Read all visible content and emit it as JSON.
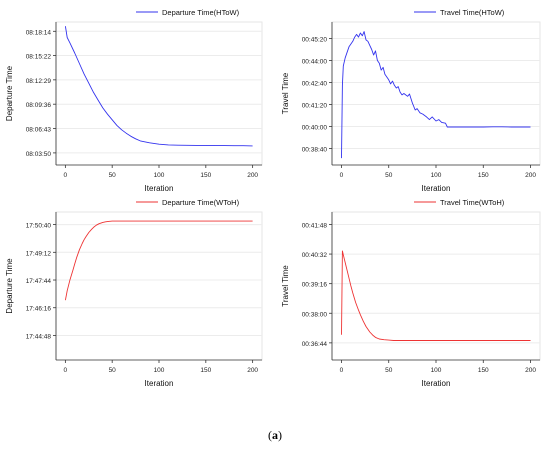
{
  "caption": {
    "open": "(",
    "letter": "a",
    "close": ")"
  },
  "chart_data": [
    {
      "type": "line",
      "legend": "Departure Time(HToW)",
      "legend_position": "top-right",
      "color": "#3333ee",
      "xlabel": "Iteration",
      "ylabel": "Departure Time",
      "xlim": [
        -10,
        210
      ],
      "xticks": [
        0,
        50,
        100,
        150,
        200
      ],
      "ylim": [
        "08:02:24",
        "08:19:20"
      ],
      "yticks": [
        "08:03:50",
        "08:06:43",
        "08:09:36",
        "08:12:29",
        "08:15:22",
        "08:18:14"
      ],
      "grid": "horizontal",
      "series": [
        {
          "x": [
            0,
            2,
            5,
            10,
            15,
            20,
            25,
            30,
            35,
            40,
            45,
            50,
            55,
            60,
            65,
            70,
            75,
            80,
            90,
            100,
            110,
            120,
            130,
            140,
            150,
            160,
            170,
            180,
            190,
            200
          ],
          "y": [
            "08:18:50",
            "08:17:30",
            "08:16:50",
            "08:15:40",
            "08:14:25",
            "08:13:10",
            "08:12:05",
            "08:11:00",
            "08:10:05",
            "08:09:10",
            "08:08:25",
            "08:07:45",
            "08:07:05",
            "08:06:35",
            "08:06:10",
            "08:05:48",
            "08:05:30",
            "08:05:15",
            "08:05:02",
            "08:04:52",
            "08:04:47",
            "08:04:45",
            "08:04:44",
            "08:04:43",
            "08:04:43",
            "08:04:42",
            "08:04:42",
            "08:04:41",
            "08:04:41",
            "08:04:40"
          ]
        }
      ]
    },
    {
      "type": "line",
      "legend": "Travel Time(HToW)",
      "legend_position": "top-right",
      "color": "#3333ee",
      "xlabel": "Iteration",
      "ylabel": "Travel Time",
      "xlim": [
        -10,
        210
      ],
      "xticks": [
        0,
        50,
        100,
        150,
        200
      ],
      "ylim": [
        "00:37:40",
        "00:46:20"
      ],
      "yticks": [
        "00:38:40",
        "00:40:00",
        "00:41:20",
        "00:42:40",
        "00:44:00",
        "00:45:20"
      ],
      "grid": "horizontal",
      "series": [
        {
          "x": [
            0,
            1,
            2,
            4,
            6,
            8,
            10,
            12,
            14,
            16,
            18,
            20,
            22,
            24,
            26,
            28,
            30,
            32,
            34,
            36,
            38,
            40,
            42,
            44,
            46,
            48,
            50,
            52,
            54,
            56,
            58,
            60,
            62,
            64,
            66,
            68,
            70,
            72,
            75,
            78,
            80,
            83,
            86,
            90,
            93,
            96,
            100,
            103,
            106,
            110,
            112,
            120,
            130,
            140,
            150,
            160,
            170,
            180,
            190,
            200
          ],
          "y": [
            "00:38:05",
            "00:42:30",
            "00:43:40",
            "00:44:10",
            "00:44:30",
            "00:44:50",
            "00:45:00",
            "00:45:10",
            "00:45:25",
            "00:45:35",
            "00:45:25",
            "00:45:40",
            "00:45:30",
            "00:45:45",
            "00:45:15",
            "00:45:10",
            "00:44:55",
            "00:44:40",
            "00:44:20",
            "00:44:35",
            "00:44:00",
            "00:43:50",
            "00:43:25",
            "00:43:35",
            "00:43:10",
            "00:43:00",
            "00:42:50",
            "00:42:35",
            "00:42:45",
            "00:42:30",
            "00:42:20",
            "00:42:25",
            "00:42:05",
            "00:41:55",
            "00:42:00",
            "00:41:55",
            "00:41:50",
            "00:41:58",
            "00:41:25",
            "00:41:00",
            "00:41:05",
            "00:40:50",
            "00:40:45",
            "00:40:35",
            "00:40:25",
            "00:40:35",
            "00:40:20",
            "00:40:25",
            "00:40:15",
            "00:40:12",
            "00:39:58",
            "00:39:58",
            "00:39:58",
            "00:39:58",
            "00:39:58",
            "00:39:59",
            "00:39:59",
            "00:39:58",
            "00:39:58",
            "00:39:58"
          ]
        }
      ]
    },
    {
      "type": "line",
      "legend": "Departure Time(WToH)",
      "legend_position": "top-right",
      "color": "#ee3333",
      "xlabel": "Iteration",
      "ylabel": "Departure Time",
      "xlim": [
        -10,
        210
      ],
      "xticks": [
        0,
        50,
        100,
        150,
        200
      ],
      "ylim": [
        "17:43:30",
        "17:51:20"
      ],
      "yticks": [
        "17:44:48",
        "17:46:16",
        "17:47:44",
        "17:49:12",
        "17:50:40"
      ],
      "grid": "horizontal",
      "series": [
        {
          "x": [
            0,
            2,
            5,
            8,
            10,
            12,
            15,
            18,
            20,
            22,
            25,
            28,
            30,
            33,
            36,
            40,
            43,
            46,
            50,
            55,
            60,
            70,
            80,
            100,
            120,
            150,
            200
          ],
          "y": [
            "17:46:40",
            "17:47:10",
            "17:47:45",
            "17:48:15",
            "17:48:35",
            "17:48:55",
            "17:49:20",
            "17:49:40",
            "17:49:52",
            "17:50:02",
            "17:50:15",
            "17:50:25",
            "17:50:31",
            "17:50:38",
            "17:50:43",
            "17:50:47",
            "17:50:49",
            "17:50:50",
            "17:50:51",
            "17:50:51",
            "17:50:51",
            "17:50:51",
            "17:50:51",
            "17:50:51",
            "17:50:51",
            "17:50:51",
            "17:50:51"
          ]
        }
      ]
    },
    {
      "type": "line",
      "legend": "Travel Time(WToH)",
      "legend_position": "top-right",
      "color": "#ee3333",
      "xlabel": "Iteration",
      "ylabel": "Travel Time",
      "xlim": [
        -10,
        210
      ],
      "xticks": [
        0,
        50,
        100,
        150,
        200
      ],
      "ylim": [
        "00:36:00",
        "00:42:20"
      ],
      "yticks": [
        "00:36:44",
        "00:38:00",
        "00:39:16",
        "00:40:32",
        "00:41:48"
      ],
      "grid": "horizontal",
      "series": [
        {
          "x": [
            0,
            1,
            2,
            4,
            6,
            8,
            10,
            12,
            15,
            18,
            20,
            23,
            26,
            30,
            33,
            36,
            40,
            45,
            50,
            55,
            60,
            70,
            80,
            100,
            120,
            150,
            200
          ],
          "y": [
            "00:37:05",
            "00:40:40",
            "00:40:30",
            "00:40:10",
            "00:39:50",
            "00:39:30",
            "00:39:10",
            "00:38:52",
            "00:38:28",
            "00:38:08",
            "00:37:56",
            "00:37:40",
            "00:37:26",
            "00:37:12",
            "00:37:04",
            "00:36:58",
            "00:36:54",
            "00:36:52",
            "00:36:51",
            "00:36:50",
            "00:36:50",
            "00:36:50",
            "00:36:50",
            "00:36:50",
            "00:36:50",
            "00:36:50",
            "00:36:50"
          ]
        }
      ]
    }
  ]
}
